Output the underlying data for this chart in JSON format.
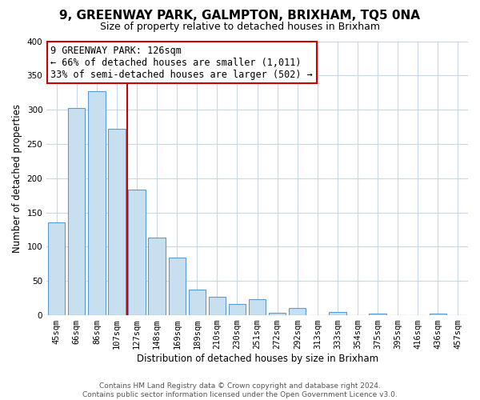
{
  "title": "9, GREENWAY PARK, GALMPTON, BRIXHAM, TQ5 0NA",
  "subtitle": "Size of property relative to detached houses in Brixham",
  "xlabel": "Distribution of detached houses by size in Brixham",
  "ylabel": "Number of detached properties",
  "bar_labels": [
    "45sqm",
    "66sqm",
    "86sqm",
    "107sqm",
    "127sqm",
    "148sqm",
    "169sqm",
    "189sqm",
    "210sqm",
    "230sqm",
    "251sqm",
    "272sqm",
    "292sqm",
    "313sqm",
    "333sqm",
    "354sqm",
    "375sqm",
    "395sqm",
    "416sqm",
    "436sqm",
    "457sqm"
  ],
  "bar_values": [
    135,
    302,
    327,
    272,
    183,
    113,
    84,
    37,
    27,
    17,
    24,
    4,
    11,
    0,
    5,
    0,
    2,
    0,
    0,
    3,
    0
  ],
  "bar_color": "#c8dff0",
  "bar_edge_color": "#5b9bd5",
  "vline_color": "#cc0000",
  "annotation_line1": "9 GREENWAY PARK: 126sqm",
  "annotation_line2": "← 66% of detached houses are smaller (1,011)",
  "annotation_line3": "33% of semi-detached houses are larger (502) →",
  "annotation_box_color": "#ffffff",
  "annotation_box_edge": "#cc0000",
  "ylim": [
    0,
    400
  ],
  "yticks": [
    0,
    50,
    100,
    150,
    200,
    250,
    300,
    350,
    400
  ],
  "footer_line1": "Contains HM Land Registry data © Crown copyright and database right 2024.",
  "footer_line2": "Contains public sector information licensed under the Open Government Licence v3.0.",
  "bg_color": "#ffffff",
  "grid_color": "#c8d8e8",
  "title_fontsize": 11,
  "subtitle_fontsize": 9,
  "axis_label_fontsize": 8.5,
  "tick_fontsize": 7.5,
  "annotation_fontsize": 8.5,
  "footer_fontsize": 6.5
}
